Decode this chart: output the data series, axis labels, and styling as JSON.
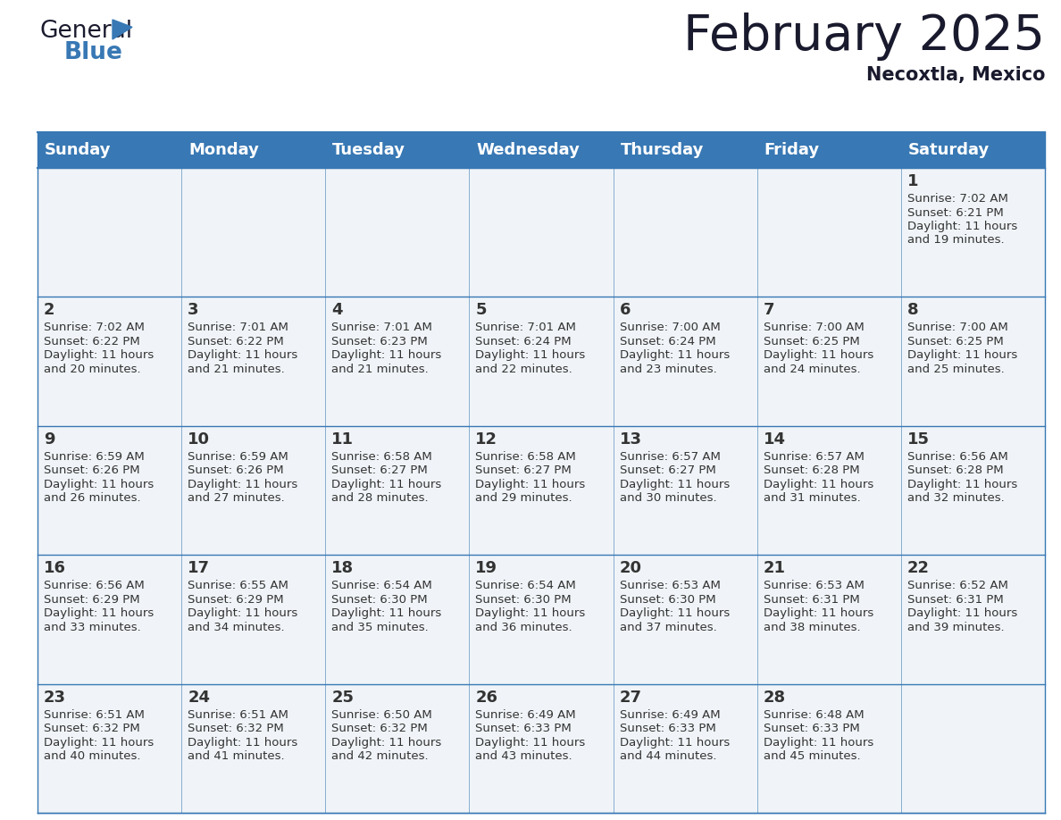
{
  "title": "February 2025",
  "subtitle": "Necoxtla, Mexico",
  "header_color": "#3878b4",
  "header_text_color": "#ffffff",
  "day_names": [
    "Sunday",
    "Monday",
    "Tuesday",
    "Wednesday",
    "Thursday",
    "Friday",
    "Saturday"
  ],
  "days": [
    {
      "day": 1,
      "col": 6,
      "row": 0,
      "sunrise": "7:02 AM",
      "sunset": "6:21 PM",
      "daylight_hours": 11,
      "daylight_minutes": 19
    },
    {
      "day": 2,
      "col": 0,
      "row": 1,
      "sunrise": "7:02 AM",
      "sunset": "6:22 PM",
      "daylight_hours": 11,
      "daylight_minutes": 20
    },
    {
      "day": 3,
      "col": 1,
      "row": 1,
      "sunrise": "7:01 AM",
      "sunset": "6:22 PM",
      "daylight_hours": 11,
      "daylight_minutes": 21
    },
    {
      "day": 4,
      "col": 2,
      "row": 1,
      "sunrise": "7:01 AM",
      "sunset": "6:23 PM",
      "daylight_hours": 11,
      "daylight_minutes": 21
    },
    {
      "day": 5,
      "col": 3,
      "row": 1,
      "sunrise": "7:01 AM",
      "sunset": "6:24 PM",
      "daylight_hours": 11,
      "daylight_minutes": 22
    },
    {
      "day": 6,
      "col": 4,
      "row": 1,
      "sunrise": "7:00 AM",
      "sunset": "6:24 PM",
      "daylight_hours": 11,
      "daylight_minutes": 23
    },
    {
      "day": 7,
      "col": 5,
      "row": 1,
      "sunrise": "7:00 AM",
      "sunset": "6:25 PM",
      "daylight_hours": 11,
      "daylight_minutes": 24
    },
    {
      "day": 8,
      "col": 6,
      "row": 1,
      "sunrise": "7:00 AM",
      "sunset": "6:25 PM",
      "daylight_hours": 11,
      "daylight_minutes": 25
    },
    {
      "day": 9,
      "col": 0,
      "row": 2,
      "sunrise": "6:59 AM",
      "sunset": "6:26 PM",
      "daylight_hours": 11,
      "daylight_minutes": 26
    },
    {
      "day": 10,
      "col": 1,
      "row": 2,
      "sunrise": "6:59 AM",
      "sunset": "6:26 PM",
      "daylight_hours": 11,
      "daylight_minutes": 27
    },
    {
      "day": 11,
      "col": 2,
      "row": 2,
      "sunrise": "6:58 AM",
      "sunset": "6:27 PM",
      "daylight_hours": 11,
      "daylight_minutes": 28
    },
    {
      "day": 12,
      "col": 3,
      "row": 2,
      "sunrise": "6:58 AM",
      "sunset": "6:27 PM",
      "daylight_hours": 11,
      "daylight_minutes": 29
    },
    {
      "day": 13,
      "col": 4,
      "row": 2,
      "sunrise": "6:57 AM",
      "sunset": "6:27 PM",
      "daylight_hours": 11,
      "daylight_minutes": 30
    },
    {
      "day": 14,
      "col": 5,
      "row": 2,
      "sunrise": "6:57 AM",
      "sunset": "6:28 PM",
      "daylight_hours": 11,
      "daylight_minutes": 31
    },
    {
      "day": 15,
      "col": 6,
      "row": 2,
      "sunrise": "6:56 AM",
      "sunset": "6:28 PM",
      "daylight_hours": 11,
      "daylight_minutes": 32
    },
    {
      "day": 16,
      "col": 0,
      "row": 3,
      "sunrise": "6:56 AM",
      "sunset": "6:29 PM",
      "daylight_hours": 11,
      "daylight_minutes": 33
    },
    {
      "day": 17,
      "col": 1,
      "row": 3,
      "sunrise": "6:55 AM",
      "sunset": "6:29 PM",
      "daylight_hours": 11,
      "daylight_minutes": 34
    },
    {
      "day": 18,
      "col": 2,
      "row": 3,
      "sunrise": "6:54 AM",
      "sunset": "6:30 PM",
      "daylight_hours": 11,
      "daylight_minutes": 35
    },
    {
      "day": 19,
      "col": 3,
      "row": 3,
      "sunrise": "6:54 AM",
      "sunset": "6:30 PM",
      "daylight_hours": 11,
      "daylight_minutes": 36
    },
    {
      "day": 20,
      "col": 4,
      "row": 3,
      "sunrise": "6:53 AM",
      "sunset": "6:30 PM",
      "daylight_hours": 11,
      "daylight_minutes": 37
    },
    {
      "day": 21,
      "col": 5,
      "row": 3,
      "sunrise": "6:53 AM",
      "sunset": "6:31 PM",
      "daylight_hours": 11,
      "daylight_minutes": 38
    },
    {
      "day": 22,
      "col": 6,
      "row": 3,
      "sunrise": "6:52 AM",
      "sunset": "6:31 PM",
      "daylight_hours": 11,
      "daylight_minutes": 39
    },
    {
      "day": 23,
      "col": 0,
      "row": 4,
      "sunrise": "6:51 AM",
      "sunset": "6:32 PM",
      "daylight_hours": 11,
      "daylight_minutes": 40
    },
    {
      "day": 24,
      "col": 1,
      "row": 4,
      "sunrise": "6:51 AM",
      "sunset": "6:32 PM",
      "daylight_hours": 11,
      "daylight_minutes": 41
    },
    {
      "day": 25,
      "col": 2,
      "row": 4,
      "sunrise": "6:50 AM",
      "sunset": "6:32 PM",
      "daylight_hours": 11,
      "daylight_minutes": 42
    },
    {
      "day": 26,
      "col": 3,
      "row": 4,
      "sunrise": "6:49 AM",
      "sunset": "6:33 PM",
      "daylight_hours": 11,
      "daylight_minutes": 43
    },
    {
      "day": 27,
      "col": 4,
      "row": 4,
      "sunrise": "6:49 AM",
      "sunset": "6:33 PM",
      "daylight_hours": 11,
      "daylight_minutes": 44
    },
    {
      "day": 28,
      "col": 5,
      "row": 4,
      "sunrise": "6:48 AM",
      "sunset": "6:33 PM",
      "daylight_hours": 11,
      "daylight_minutes": 45
    }
  ],
  "n_rows": 5,
  "n_cols": 7,
  "cell_bg": "#f0f4f8",
  "grid_color": "#3878b4",
  "text_color_day_num": "#333333",
  "text_color_info": "#333333",
  "title_fontsize": 40,
  "subtitle_fontsize": 15,
  "dayname_fontsize": 13,
  "daynum_fontsize": 13,
  "info_fontsize": 9.5
}
